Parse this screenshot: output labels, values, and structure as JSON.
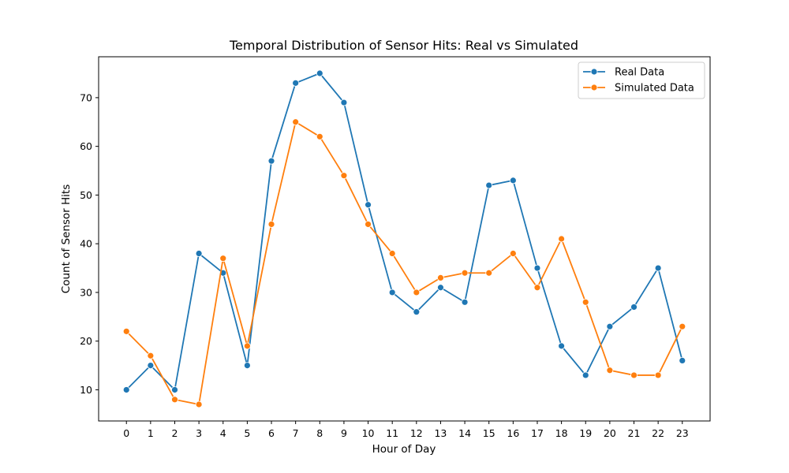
{
  "chart_data": {
    "type": "line",
    "title": "Temporal Distribution of Sensor Hits: Real vs Simulated",
    "xlabel": "Hour of Day",
    "ylabel": "Count of Sensor Hits",
    "x": [
      0,
      1,
      2,
      3,
      4,
      5,
      6,
      7,
      8,
      9,
      10,
      11,
      12,
      13,
      14,
      15,
      16,
      17,
      18,
      19,
      20,
      21,
      22,
      23
    ],
    "x_tick_labels": [
      "0",
      "1",
      "2",
      "3",
      "4",
      "5",
      "6",
      "7",
      "8",
      "9",
      "10",
      "11",
      "12",
      "13",
      "14",
      "15",
      "16",
      "17",
      "18",
      "19",
      "20",
      "21",
      "22",
      "23"
    ],
    "xlim": [
      -1.15,
      24.15
    ],
    "ylim": [
      3.6,
      78.4
    ],
    "y_ticks": [
      10,
      20,
      30,
      40,
      50,
      60,
      70
    ],
    "y_tick_labels": [
      "10",
      "20",
      "30",
      "40",
      "50",
      "60",
      "70"
    ],
    "grid": false,
    "legend_position": "top-right",
    "marker": "circle",
    "series": [
      {
        "name": "Real Data",
        "color": "#1f77b4",
        "values": [
          10,
          15,
          10,
          38,
          34,
          15,
          57,
          73,
          75,
          69,
          48,
          30,
          26,
          31,
          28,
          52,
          53,
          35,
          19,
          13,
          23,
          27,
          35,
          16
        ]
      },
      {
        "name": "Simulated Data",
        "color": "#ff7f0e",
        "values": [
          22,
          17,
          8,
          7,
          37,
          19,
          44,
          65,
          62,
          54,
          44,
          38,
          30,
          33,
          34,
          34,
          38,
          31,
          41,
          28,
          14,
          13,
          13,
          23
        ]
      }
    ]
  }
}
